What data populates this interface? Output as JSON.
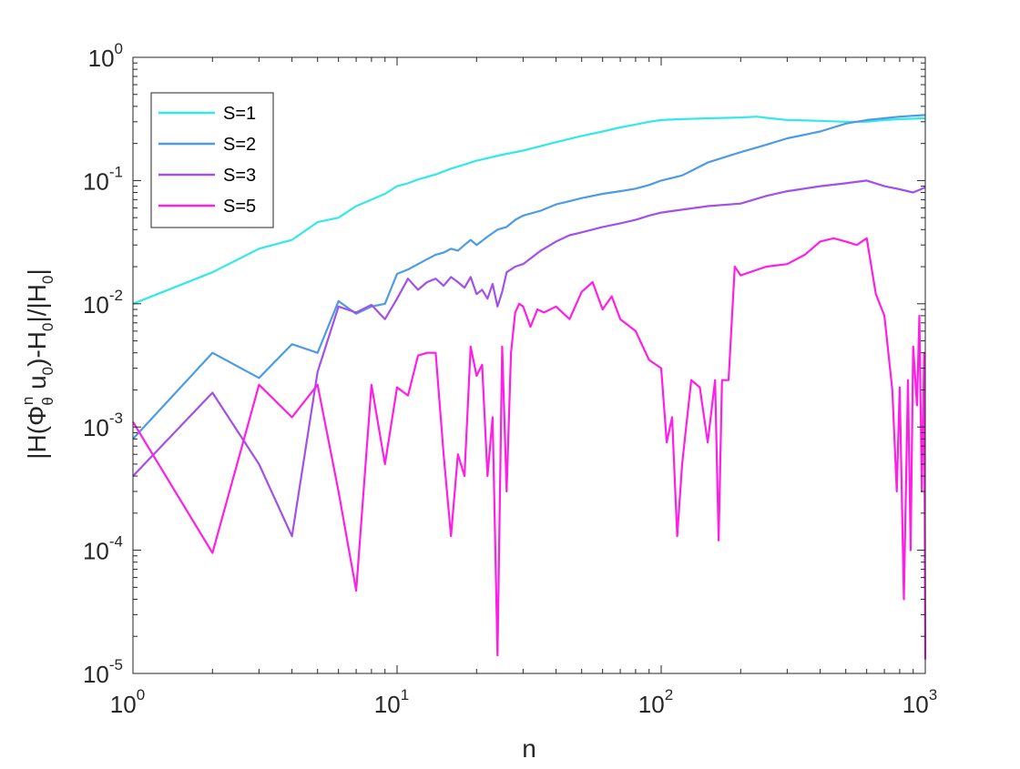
{
  "chart_data": {
    "type": "line",
    "xscale": "log",
    "yscale": "log",
    "xlim": [
      1,
      1000
    ],
    "ylim": [
      1e-05,
      1
    ],
    "xlabel": "n",
    "ylabel": "|H(Φθn u0)-H0|/|H0|",
    "ylabel_parts": [
      "|H(Φ",
      "θ",
      "n",
      " u",
      "0",
      ")-H",
      "0",
      "|/|H",
      "0",
      "|"
    ],
    "xticks": [
      {
        "base": "10",
        "exp": "0"
      },
      {
        "base": "10",
        "exp": "1"
      },
      {
        "base": "10",
        "exp": "2"
      },
      {
        "base": "10",
        "exp": "3"
      }
    ],
    "yticks": [
      {
        "base": "10",
        "exp": "0"
      },
      {
        "base": "10",
        "exp": "-1"
      },
      {
        "base": "10",
        "exp": "-2"
      },
      {
        "base": "10",
        "exp": "-3"
      },
      {
        "base": "10",
        "exp": "-4"
      },
      {
        "base": "10",
        "exp": "-5"
      }
    ],
    "grid": false,
    "legend_position": "top-left",
    "series": [
      {
        "name": "S=1",
        "color": "#33e8e8",
        "x": [
          1,
          2,
          3,
          4,
          5,
          6,
          7,
          8,
          9,
          10,
          11,
          12,
          14,
          16,
          18,
          20,
          25,
          30,
          40,
          50,
          60,
          70,
          80,
          90,
          100,
          120,
          150,
          200,
          230,
          260,
          300,
          400,
          500,
          600,
          700,
          800,
          1000
        ],
        "y": [
          0.01,
          0.018,
          0.028,
          0.033,
          0.046,
          0.05,
          0.062,
          0.07,
          0.078,
          0.09,
          0.095,
          0.102,
          0.112,
          0.125,
          0.135,
          0.145,
          0.162,
          0.175,
          0.205,
          0.23,
          0.25,
          0.27,
          0.285,
          0.3,
          0.31,
          0.315,
          0.32,
          0.325,
          0.33,
          0.32,
          0.31,
          0.305,
          0.3,
          0.3,
          0.31,
          0.315,
          0.32
        ]
      },
      {
        "name": "S=2",
        "color": "#4d9be6",
        "x": [
          1,
          2,
          3,
          4,
          5,
          6,
          7,
          8,
          9,
          10,
          11,
          12,
          13,
          14,
          15,
          16,
          17,
          18,
          19,
          20,
          22,
          24,
          26,
          28,
          30,
          35,
          40,
          45,
          50,
          60,
          70,
          80,
          90,
          100,
          120,
          150,
          200,
          250,
          300,
          400,
          500,
          600,
          800,
          1000
        ],
        "y": [
          0.0008,
          0.004,
          0.0025,
          0.0047,
          0.004,
          0.0105,
          0.0083,
          0.0095,
          0.01,
          0.0175,
          0.019,
          0.021,
          0.023,
          0.025,
          0.026,
          0.028,
          0.027,
          0.03,
          0.033,
          0.03,
          0.035,
          0.04,
          0.042,
          0.048,
          0.052,
          0.057,
          0.064,
          0.068,
          0.072,
          0.078,
          0.082,
          0.086,
          0.092,
          0.1,
          0.11,
          0.14,
          0.17,
          0.195,
          0.22,
          0.25,
          0.29,
          0.31,
          0.33,
          0.34
        ]
      },
      {
        "name": "S=3",
        "color": "#a350e8",
        "x": [
          1,
          2,
          3,
          4,
          5,
          6,
          7,
          8,
          9,
          10,
          11,
          12,
          13,
          14,
          15,
          16,
          17,
          18,
          19,
          20,
          21,
          22,
          23,
          24,
          25,
          26,
          28,
          30,
          35,
          40,
          45,
          50,
          60,
          70,
          80,
          90,
          100,
          120,
          150,
          200,
          250,
          300,
          400,
          500,
          600,
          700,
          800,
          900,
          1000
        ],
        "y": [
          0.0004,
          0.0019,
          0.0005,
          0.00013,
          0.0028,
          0.0095,
          0.0085,
          0.0098,
          0.0075,
          0.011,
          0.016,
          0.013,
          0.015,
          0.016,
          0.014,
          0.0165,
          0.015,
          0.0135,
          0.0165,
          0.012,
          0.013,
          0.011,
          0.0145,
          0.0095,
          0.0125,
          0.018,
          0.02,
          0.021,
          0.027,
          0.032,
          0.036,
          0.038,
          0.042,
          0.045,
          0.048,
          0.052,
          0.055,
          0.058,
          0.062,
          0.065,
          0.075,
          0.082,
          0.09,
          0.095,
          0.1,
          0.09,
          0.085,
          0.08,
          0.088
        ]
      },
      {
        "name": "S=5",
        "color": "#ff1ee6",
        "x": [
          1,
          2,
          3,
          4,
          5,
          6,
          7,
          8,
          9,
          10,
          11,
          12,
          13,
          14,
          15,
          16,
          17,
          18,
          19,
          20,
          21,
          22,
          23,
          24,
          25,
          26,
          27,
          28,
          29,
          30,
          32,
          34,
          36,
          40,
          45,
          50,
          55,
          60,
          65,
          70,
          80,
          90,
          100,
          105,
          110,
          115,
          120,
          130,
          140,
          150,
          160,
          165,
          170,
          180,
          190,
          200,
          250,
          300,
          350,
          400,
          450,
          500,
          550,
          600,
          650,
          700,
          750,
          780,
          800,
          830,
          860,
          880,
          900,
          930,
          950,
          970,
          990,
          1000
        ],
        "y": [
          0.0011,
          9.5e-05,
          0.0022,
          0.0012,
          0.0022,
          0.0003,
          4.7e-05,
          0.0022,
          0.0005,
          0.0021,
          0.0018,
          0.0038,
          0.004,
          0.004,
          0.0006,
          0.00013,
          0.0006,
          0.0004,
          0.0045,
          0.0026,
          0.0032,
          0.0004,
          0.0012,
          1.4e-05,
          0.0045,
          0.0003,
          0.004,
          0.0085,
          0.01,
          0.0095,
          0.0065,
          0.009,
          0.0085,
          0.0095,
          0.0075,
          0.0125,
          0.015,
          0.009,
          0.0115,
          0.0075,
          0.006,
          0.0035,
          0.003,
          0.00075,
          0.0012,
          0.00013,
          0.0005,
          0.0024,
          0.0021,
          0.00075,
          0.0024,
          0.00012,
          0.0024,
          0.0024,
          0.02,
          0.017,
          0.02,
          0.021,
          0.025,
          0.032,
          0.034,
          0.032,
          0.03,
          0.034,
          0.012,
          0.008,
          0.002,
          0.0003,
          0.0021,
          4e-05,
          0.0024,
          0.0001,
          0.0045,
          0.0015,
          0.008,
          0.0003,
          0.004,
          1.3e-05
        ]
      }
    ]
  }
}
